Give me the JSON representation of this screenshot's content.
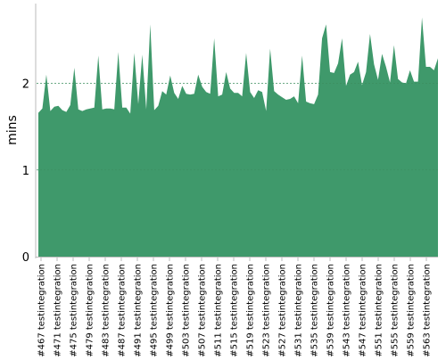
{
  "chart_data": {
    "type": "area",
    "title": "",
    "xlabel": "",
    "ylabel": "mins",
    "ylim": [
      0,
      2.9
    ],
    "yticks": [
      0,
      1,
      2
    ],
    "grid": "horizontal dashed at y ticks",
    "legend": "none",
    "colors": {
      "area": "#3f996b",
      "grid": "#3c8f5f",
      "axis": "#bbbbbb",
      "text": "#000000"
    },
    "x_tick_labels": [
      "#467 testintegration",
      "#471 testintegration",
      "#475 testintegration",
      "#479 testintegration",
      "#483 testintegration",
      "#487 testintegration",
      "#491 testintegration",
      "#495 testintegration",
      "#499 testintegration",
      "#503 testintegration",
      "#507 testintegration",
      "#511 testintegration",
      "#515 testintegration",
      "#519 testintegration",
      "#523 testintegration",
      "#527 testintegration",
      "#531 testintegration",
      "#535 testintegration",
      "#539 testintegration",
      "#543 testintegration",
      "#547 testintegration",
      "#551 testintegration",
      "#555 testintegration",
      "#559 testintegration",
      "#563 testintegration"
    ],
    "series": [
      {
        "values": [
          1.66,
          1.71,
          2.1,
          1.68,
          1.73,
          1.74,
          1.69,
          1.67,
          1.75,
          2.18,
          1.7,
          1.68,
          1.7,
          1.71,
          1.72,
          2.32,
          1.7,
          1.71,
          1.71,
          1.7,
          2.36,
          1.72,
          1.72,
          1.65,
          2.35,
          1.76,
          2.33,
          1.7,
          2.68,
          1.69,
          1.74,
          1.91,
          1.87,
          2.09,
          1.89,
          1.82,
          1.97,
          1.88,
          1.87,
          1.88,
          2.1,
          1.96,
          1.9,
          1.88,
          2.52,
          1.85,
          1.87,
          2.13,
          1.94,
          1.89,
          1.89,
          1.85,
          2.35,
          1.9,
          1.83,
          1.92,
          1.9,
          1.68,
          2.4,
          1.91,
          1.87,
          1.84,
          1.81,
          1.82,
          1.85,
          1.77,
          2.32,
          1.79,
          1.77,
          1.76,
          1.87,
          2.52,
          2.68,
          2.13,
          2.12,
          2.23,
          2.52,
          1.97,
          2.1,
          2.13,
          2.25,
          1.98,
          2.13,
          2.57,
          2.22,
          2.04,
          2.34,
          2.19,
          2.01,
          2.44,
          2.05,
          2.01,
          2.0,
          2.15,
          2.02,
          2.02,
          2.76,
          2.19,
          2.19,
          2.15,
          2.29
        ]
      }
    ]
  }
}
